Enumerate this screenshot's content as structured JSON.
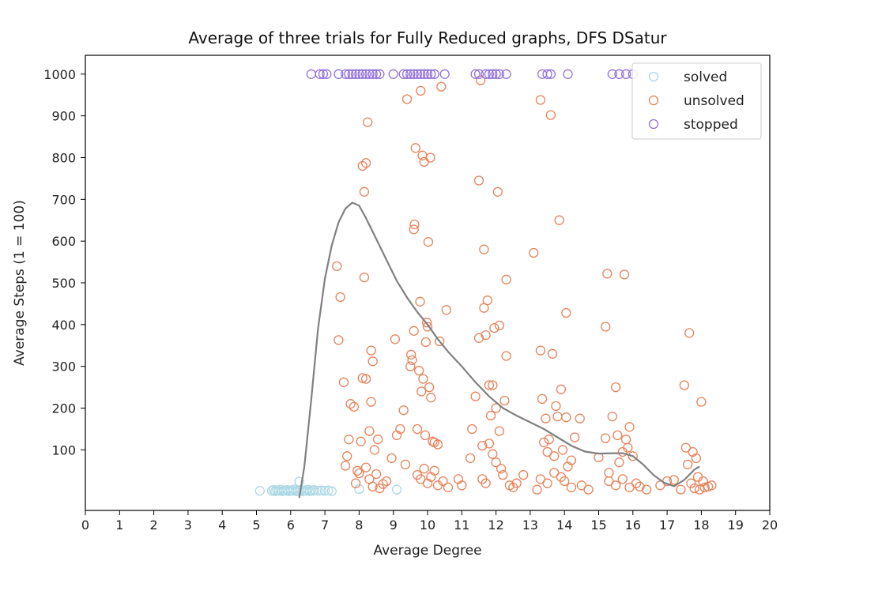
{
  "chart_data": {
    "type": "scatter",
    "title": "Average of three trials for Fully Reduced graphs, DFS DSatur",
    "xlabel": "Average Degree",
    "ylabel": "Average Steps (1 = 100)",
    "xlim": [
      0,
      20
    ],
    "ylim": [
      -45,
      1045
    ],
    "x_ticks": [
      0,
      1,
      2,
      3,
      4,
      5,
      6,
      7,
      8,
      9,
      10,
      11,
      12,
      13,
      14,
      15,
      16,
      17,
      18,
      19,
      20
    ],
    "y_ticks": [
      100,
      200,
      300,
      400,
      500,
      600,
      700,
      800,
      900,
      1000
    ],
    "grid": false,
    "legend_position": "top-right",
    "series": [
      {
        "name": "solved",
        "color": "#add8e6",
        "marker": "hollow-circle",
        "points": [
          [
            5.1,
            2
          ],
          [
            5.45,
            2
          ],
          [
            5.5,
            4
          ],
          [
            5.55,
            1
          ],
          [
            5.6,
            3
          ],
          [
            5.65,
            2
          ],
          [
            5.7,
            5
          ],
          [
            5.75,
            1
          ],
          [
            5.8,
            3
          ],
          [
            5.85,
            2
          ],
          [
            5.9,
            4
          ],
          [
            5.95,
            1
          ],
          [
            6.0,
            3
          ],
          [
            6.05,
            2
          ],
          [
            6.1,
            5
          ],
          [
            6.15,
            1
          ],
          [
            6.2,
            3
          ],
          [
            6.25,
            24
          ],
          [
            6.25,
            2
          ],
          [
            6.3,
            4
          ],
          [
            6.35,
            1
          ],
          [
            6.4,
            3
          ],
          [
            6.45,
            2
          ],
          [
            6.5,
            5
          ],
          [
            6.55,
            1
          ],
          [
            6.6,
            3
          ],
          [
            6.65,
            2
          ],
          [
            6.7,
            4
          ],
          [
            6.8,
            2
          ],
          [
            6.9,
            3
          ],
          [
            7.0,
            2
          ],
          [
            7.1,
            3
          ],
          [
            7.2,
            1
          ],
          [
            8.0,
            6
          ],
          [
            9.1,
            5
          ]
        ]
      },
      {
        "name": "unsolved",
        "color": "#e8825a",
        "marker": "hollow-circle",
        "points": [
          [
            7.35,
            540
          ],
          [
            7.4,
            363
          ],
          [
            7.45,
            466
          ],
          [
            7.55,
            262
          ],
          [
            7.6,
            62
          ],
          [
            7.65,
            85
          ],
          [
            7.7,
            125
          ],
          [
            7.75,
            210
          ],
          [
            7.85,
            203
          ],
          [
            7.9,
            20
          ],
          [
            7.95,
            50
          ],
          [
            8.0,
            44
          ],
          [
            8.05,
            120
          ],
          [
            8.1,
            272
          ],
          [
            8.1,
            780
          ],
          [
            8.15,
            718
          ],
          [
            8.15,
            513
          ],
          [
            8.2,
            787
          ],
          [
            8.2,
            270
          ],
          [
            8.25,
            885
          ],
          [
            8.3,
            145
          ],
          [
            8.35,
            338
          ],
          [
            8.35,
            215
          ],
          [
            8.4,
            312
          ],
          [
            8.45,
            100
          ],
          [
            8.5,
            42
          ],
          [
            8.55,
            125
          ],
          [
            8.2,
            58
          ],
          [
            8.3,
            30
          ],
          [
            8.4,
            12
          ],
          [
            8.6,
            8
          ],
          [
            8.7,
            18
          ],
          [
            8.8,
            25
          ],
          [
            8.95,
            80
          ],
          [
            9.05,
            365
          ],
          [
            9.1,
            135
          ],
          [
            9.2,
            150
          ],
          [
            9.3,
            195
          ],
          [
            9.35,
            65
          ],
          [
            9.4,
            940
          ],
          [
            9.5,
            300
          ],
          [
            9.52,
            328
          ],
          [
            9.55,
            315
          ],
          [
            9.6,
            628
          ],
          [
            9.62,
            640
          ],
          [
            9.65,
            823
          ],
          [
            9.7,
            150
          ],
          [
            9.75,
            290
          ],
          [
            9.78,
            455
          ],
          [
            9.8,
            960
          ],
          [
            9.82,
            240
          ],
          [
            9.85,
            805
          ],
          [
            9.87,
            270
          ],
          [
            9.9,
            790
          ],
          [
            9.93,
            135
          ],
          [
            9.95,
            358
          ],
          [
            9.98,
            405
          ],
          [
            10.0,
            395
          ],
          [
            10.02,
            598
          ],
          [
            10.05,
            250
          ],
          [
            10.08,
            800
          ],
          [
            10.1,
            225
          ],
          [
            10.15,
            120
          ],
          [
            10.2,
            118
          ],
          [
            10.3,
            113
          ],
          [
            10.35,
            360
          ],
          [
            10.4,
            970
          ],
          [
            10.55,
            435
          ],
          [
            9.6,
            385
          ],
          [
            9.7,
            40
          ],
          [
            9.8,
            30
          ],
          [
            9.9,
            55
          ],
          [
            10.0,
            20
          ],
          [
            10.1,
            35
          ],
          [
            10.2,
            50
          ],
          [
            10.3,
            15
          ],
          [
            10.45,
            25
          ],
          [
            10.6,
            10
          ],
          [
            10.9,
            30
          ],
          [
            11.0,
            15
          ],
          [
            11.25,
            80
          ],
          [
            11.3,
            150
          ],
          [
            11.4,
            228
          ],
          [
            11.5,
            745
          ],
          [
            11.5,
            368
          ],
          [
            11.55,
            985
          ],
          [
            11.6,
            110
          ],
          [
            11.65,
            440
          ],
          [
            11.65,
            580
          ],
          [
            11.7,
            375
          ],
          [
            11.75,
            458
          ],
          [
            11.8,
            255
          ],
          [
            11.85,
            182
          ],
          [
            11.9,
            255
          ],
          [
            11.95,
            392
          ],
          [
            12.0,
            200
          ],
          [
            12.05,
            718
          ],
          [
            12.1,
            398
          ],
          [
            12.15,
            55
          ],
          [
            12.2,
            40
          ],
          [
            12.25,
            218
          ],
          [
            12.3,
            508
          ],
          [
            12.3,
            325
          ],
          [
            11.8,
            115
          ],
          [
            11.9,
            90
          ],
          [
            12.0,
            70
          ],
          [
            12.1,
            145
          ],
          [
            11.6,
            30
          ],
          [
            11.7,
            20
          ],
          [
            12.4,
            15
          ],
          [
            12.5,
            10
          ],
          [
            12.6,
            20
          ],
          [
            12.8,
            40
          ],
          [
            13.1,
            572
          ],
          [
            13.2,
            5
          ],
          [
            13.3,
            938
          ],
          [
            13.3,
            338
          ],
          [
            13.35,
            222
          ],
          [
            13.4,
            118
          ],
          [
            13.45,
            175
          ],
          [
            13.5,
            95
          ],
          [
            13.55,
            125
          ],
          [
            13.6,
            902
          ],
          [
            13.65,
            330
          ],
          [
            13.7,
            85
          ],
          [
            13.75,
            205
          ],
          [
            13.8,
            180
          ],
          [
            13.85,
            650
          ],
          [
            13.9,
            245
          ],
          [
            13.95,
            100
          ],
          [
            14.05,
            178
          ],
          [
            14.05,
            428
          ],
          [
            14.1,
            60
          ],
          [
            14.2,
            75
          ],
          [
            14.3,
            130
          ],
          [
            14.45,
            175
          ],
          [
            13.3,
            30
          ],
          [
            13.5,
            20
          ],
          [
            13.7,
            45
          ],
          [
            13.9,
            35
          ],
          [
            14.0,
            25
          ],
          [
            14.2,
            10
          ],
          [
            14.5,
            15
          ],
          [
            14.7,
            5
          ],
          [
            15.0,
            82
          ],
          [
            15.2,
            128
          ],
          [
            15.2,
            395
          ],
          [
            15.25,
            522
          ],
          [
            15.3,
            45
          ],
          [
            15.4,
            180
          ],
          [
            15.5,
            250
          ],
          [
            15.55,
            135
          ],
          [
            15.6,
            70
          ],
          [
            15.7,
            95
          ],
          [
            15.75,
            520
          ],
          [
            15.8,
            125
          ],
          [
            15.85,
            105
          ],
          [
            15.9,
            155
          ],
          [
            16.0,
            85
          ],
          [
            16.1,
            20
          ],
          [
            15.3,
            25
          ],
          [
            15.5,
            15
          ],
          [
            15.7,
            30
          ],
          [
            15.9,
            10
          ],
          [
            16.2,
            12
          ],
          [
            16.4,
            5
          ],
          [
            16.8,
            15
          ],
          [
            17.0,
            25
          ],
          [
            17.2,
            28
          ],
          [
            17.4,
            5
          ],
          [
            17.5,
            255
          ],
          [
            17.55,
            105
          ],
          [
            17.6,
            65
          ],
          [
            17.65,
            380
          ],
          [
            17.7,
            20
          ],
          [
            17.75,
            95
          ],
          [
            17.8,
            8
          ],
          [
            17.85,
            80
          ],
          [
            17.9,
            35
          ],
          [
            18.0,
            215
          ],
          [
            18.05,
            25
          ],
          [
            18.2,
            12
          ],
          [
            18.3,
            15
          ],
          [
            18.1,
            10
          ],
          [
            17.95,
            5
          ]
        ]
      },
      {
        "name": "stopped",
        "color": "#9370db",
        "marker": "hollow-circle",
        "points": [
          [
            6.6,
            1000
          ],
          [
            6.85,
            1000
          ],
          [
            6.95,
            1000
          ],
          [
            7.05,
            1000
          ],
          [
            7.4,
            1000
          ],
          [
            7.6,
            1000
          ],
          [
            7.7,
            1000
          ],
          [
            7.8,
            1000
          ],
          [
            7.9,
            1000
          ],
          [
            8.0,
            1000
          ],
          [
            8.1,
            1000
          ],
          [
            8.2,
            1000
          ],
          [
            8.3,
            1000
          ],
          [
            8.4,
            1000
          ],
          [
            8.5,
            1000
          ],
          [
            8.6,
            1000
          ],
          [
            9.0,
            1000
          ],
          [
            9.3,
            1000
          ],
          [
            9.4,
            1000
          ],
          [
            9.5,
            1000
          ],
          [
            9.6,
            1000
          ],
          [
            9.7,
            1000
          ],
          [
            9.8,
            1000
          ],
          [
            9.9,
            1000
          ],
          [
            10.0,
            1000
          ],
          [
            10.1,
            1000
          ],
          [
            10.2,
            1000
          ],
          [
            10.5,
            1000
          ],
          [
            11.4,
            1000
          ],
          [
            11.5,
            1000
          ],
          [
            11.7,
            1000
          ],
          [
            11.8,
            1000
          ],
          [
            11.9,
            1000
          ],
          [
            12.0,
            1000
          ],
          [
            12.1,
            1000
          ],
          [
            12.3,
            1000
          ],
          [
            13.35,
            1000
          ],
          [
            13.5,
            1000
          ],
          [
            13.6,
            1000
          ],
          [
            14.1,
            1000
          ],
          [
            15.4,
            1000
          ],
          [
            15.6,
            1000
          ],
          [
            15.8,
            1000
          ],
          [
            16.0,
            1000
          ]
        ]
      }
    ],
    "trend_line": {
      "color": "#808080",
      "points": [
        [
          6.25,
          -15
        ],
        [
          6.4,
          60
        ],
        [
          6.6,
          220
        ],
        [
          6.8,
          390
        ],
        [
          7.0,
          510
        ],
        [
          7.2,
          590
        ],
        [
          7.4,
          645
        ],
        [
          7.6,
          678
        ],
        [
          7.8,
          692
        ],
        [
          8.0,
          685
        ],
        [
          8.2,
          655
        ],
        [
          8.5,
          605
        ],
        [
          8.8,
          555
        ],
        [
          9.1,
          505
        ],
        [
          9.4,
          465
        ],
        [
          9.7,
          430
        ],
        [
          10.0,
          400
        ],
        [
          10.3,
          365
        ],
        [
          10.6,
          335
        ],
        [
          11.0,
          300
        ],
        [
          11.4,
          262
        ],
        [
          11.8,
          228
        ],
        [
          12.2,
          200
        ],
        [
          12.6,
          182
        ],
        [
          13.0,
          166
        ],
        [
          13.4,
          150
        ],
        [
          13.8,
          130
        ],
        [
          14.2,
          110
        ],
        [
          14.6,
          96
        ],
        [
          15.0,
          91
        ],
        [
          15.4,
          92
        ],
        [
          15.7,
          92
        ],
        [
          16.0,
          85
        ],
        [
          16.3,
          65
        ],
        [
          16.6,
          40
        ],
        [
          16.9,
          22
        ],
        [
          17.2,
          13
        ],
        [
          17.5,
          28
        ],
        [
          17.8,
          53
        ],
        [
          17.95,
          60
        ]
      ]
    }
  }
}
